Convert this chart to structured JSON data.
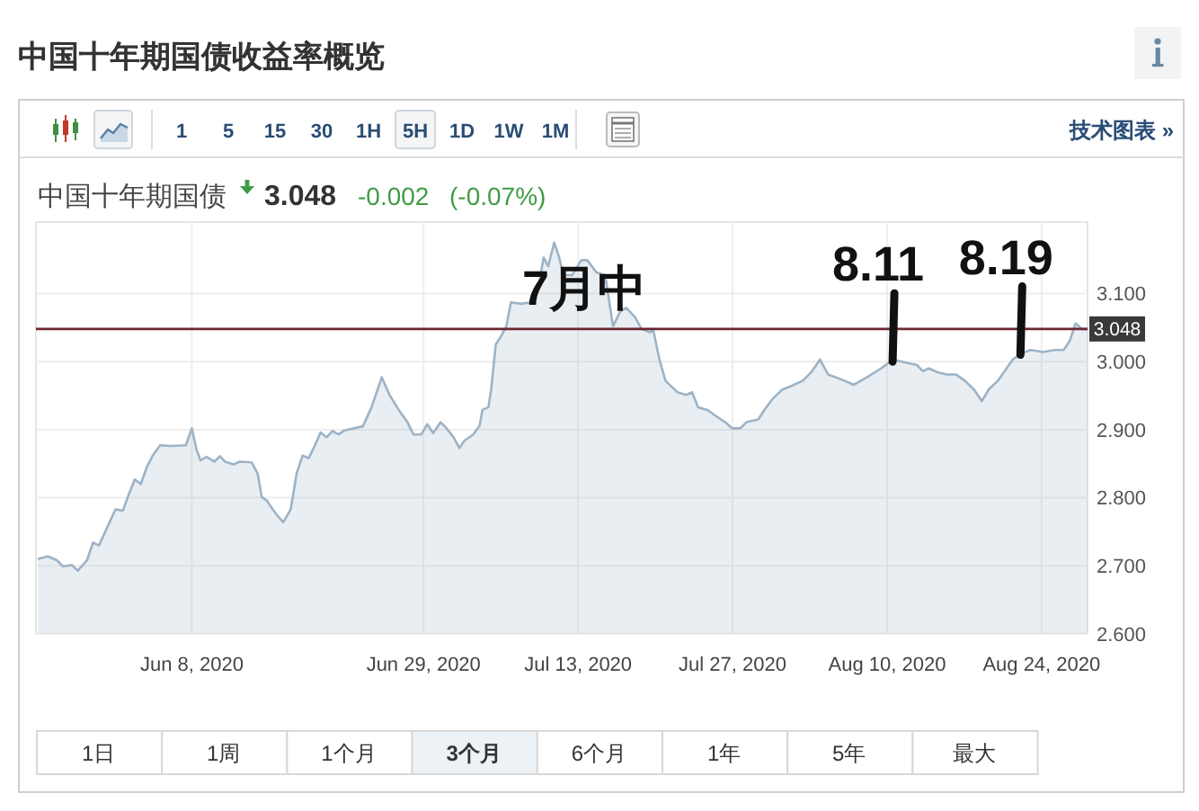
{
  "chart_data": {
    "type": "area",
    "title": "中国十年期国债收益率概览",
    "subtitle": "中国十年期国债",
    "color": "#9db3c6",
    "x": [
      "2020-05-25T01:00",
      "2020-05-25T23:00",
      "2020-05-26T19:00",
      "2020-05-27T08:00",
      "2020-05-28T03:00",
      "2020-05-28T16:00",
      "2020-05-29T12:00",
      "2020-05-30T01:00",
      "2020-05-30T14:00",
      "2020-06-01T02:00",
      "2020-06-01T18:00",
      "2020-06-02T07:00",
      "2020-06-02T20:00",
      "2020-06-03T09:00",
      "2020-06-03T22:00",
      "2020-06-04T11:00",
      "2020-06-05T03:00",
      "2020-06-06T02:00",
      "2020-06-07T11:00",
      "2020-06-08T00:00",
      "2020-06-08T10:00",
      "2020-06-08T19:00",
      "2020-06-09T08:00",
      "2020-06-10T01:00",
      "2020-06-10T13:00",
      "2020-06-11T00:00",
      "2020-06-11T19:00",
      "2020-06-12T08:00",
      "2020-06-13T10:00",
      "2020-06-13T23:00",
      "2020-06-14T08:00",
      "2020-06-14T19:00",
      "2020-06-15T08:00",
      "2020-06-15T18:00",
      "2020-06-16T07:00",
      "2020-06-16T23:00",
      "2020-06-17T12:00",
      "2020-06-18T01:00",
      "2020-06-18T14:00",
      "2020-06-19T03:00",
      "2020-06-19T16:00",
      "2020-06-20T05:00",
      "2020-06-20T18:00",
      "2020-06-21T07:00",
      "2020-06-21T20:00",
      "2020-06-23T12:00",
      "2020-06-24T07:00",
      "2020-06-25T05:00",
      "2020-06-25T22:00",
      "2020-06-26T18:00",
      "2020-06-27T13:00",
      "2020-06-28T02:00",
      "2020-06-28T19:00",
      "2020-06-29T08:00",
      "2020-06-29T21:00",
      "2020-06-30T13:00",
      "2020-07-01T02:00",
      "2020-07-01T17:00",
      "2020-07-02T06:00",
      "2020-07-02T17:00",
      "2020-07-03T12:00",
      "2020-07-04T02:00",
      "2020-07-04T08:00",
      "2020-07-04T21:00",
      "2020-07-05T03:00",
      "2020-07-05T13:00",
      "2020-07-06T02:00",
      "2020-07-06T12:00",
      "2020-07-06T22:00",
      "2020-07-07T21:00",
      "2020-07-08T16:00",
      "2020-07-09T12:00",
      "2020-07-09T21:00",
      "2020-07-10T07:00",
      "2020-07-10T20:00",
      "2020-07-11T07:00",
      "2020-07-11T16:00",
      "2020-07-12T11:00",
      "2020-07-13T07:00",
      "2020-07-13T20:00",
      "2020-07-14T16:00",
      "2020-07-15T11:00",
      "2020-07-16T04:00",
      "2020-07-16T20:00",
      "2020-07-17T09:00",
      "2020-07-18T04:00",
      "2020-07-18T18:00",
      "2020-07-19T13:00",
      "2020-07-19T19:00",
      "2020-07-20T09:00",
      "2020-07-20T22:00",
      "2020-07-21T10:00",
      "2020-07-22T00:00",
      "2020-07-22T19:00",
      "2020-07-23T08:00",
      "2020-07-23T21:00",
      "2020-07-24T17:00",
      "2020-07-25T12:00",
      "2020-07-26T08:00",
      "2020-07-26T23:00",
      "2020-07-27T17:00",
      "2020-07-28T06:00",
      "2020-07-29T08:00",
      "2020-07-29T21:00",
      "2020-07-30T16:00",
      "2020-07-31T12:00",
      "2020-08-01T07:00",
      "2020-08-02T09:00",
      "2020-08-03T05:00",
      "2020-08-03T22:00",
      "2020-08-04T16:00",
      "2020-08-05T16:00",
      "2020-08-07T00:00",
      "2020-08-08T09:00",
      "2020-08-09T11:00",
      "2020-08-10T13:00",
      "2020-08-11T15:00",
      "2020-08-12T17:00",
      "2020-08-13T06:00",
      "2020-08-13T19:00",
      "2020-08-14T15:00",
      "2020-08-15T10:00",
      "2020-08-16T06:00",
      "2020-08-17T01:00",
      "2020-08-17T21:00",
      "2020-08-18T14:00",
      "2020-08-19T05:00",
      "2020-08-20T01:00",
      "2020-08-20T20:00",
      "2020-08-21T09:00",
      "2020-08-22T01:00",
      "2020-08-23T00:00",
      "2020-08-24T03:00",
      "2020-08-25T05:00",
      "2020-08-26T00:00",
      "2020-08-26T13:00",
      "2020-08-27T02:00",
      "2020-08-27T16:00",
      "2020-08-28T04:00"
    ],
    "values": [
      2.71,
      2.714,
      2.708,
      2.699,
      2.701,
      2.693,
      2.708,
      2.734,
      2.73,
      2.783,
      2.781,
      2.805,
      2.827,
      2.82,
      2.845,
      2.862,
      2.877,
      2.876,
      2.877,
      2.902,
      2.871,
      2.855,
      2.86,
      2.853,
      2.861,
      2.853,
      2.849,
      2.853,
      2.852,
      2.836,
      2.801,
      2.796,
      2.783,
      2.774,
      2.764,
      2.783,
      2.836,
      2.862,
      2.858,
      2.876,
      2.896,
      2.889,
      2.898,
      2.893,
      2.899,
      2.905,
      2.933,
      2.977,
      2.951,
      2.929,
      2.911,
      2.893,
      2.893,
      2.908,
      2.895,
      2.911,
      2.902,
      2.889,
      2.873,
      2.884,
      2.893,
      2.906,
      2.929,
      2.933,
      2.959,
      3.025,
      3.039,
      3.052,
      3.087,
      3.085,
      3.087,
      3.118,
      3.153,
      3.14,
      3.175,
      3.153,
      3.127,
      3.127,
      3.149,
      3.149,
      3.131,
      3.127,
      3.052,
      3.074,
      3.079,
      3.065,
      3.048,
      3.043,
      3.048,
      3.003,
      2.972,
      2.964,
      2.955,
      2.951,
      2.955,
      2.933,
      2.929,
      2.92,
      2.911,
      2.902,
      2.902,
      2.911,
      2.915,
      2.929,
      2.946,
      2.959,
      2.964,
      2.972,
      2.986,
      3.003,
      2.981,
      2.975,
      2.966,
      2.979,
      2.99,
      3.003,
      2.999,
      2.995,
      2.986,
      2.99,
      2.984,
      2.981,
      2.981,
      2.972,
      2.959,
      2.942,
      2.959,
      2.972,
      2.99,
      3.003,
      3.011,
      3.017,
      3.014,
      3.017,
      3.017,
      3.03,
      3.056,
      3.048,
      3.048
    ],
    "xlim": [
      "2020-05-24T21:00",
      "2020-08-28T04:00"
    ],
    "xticks": [
      {
        "value": "2020-06-08",
        "label": "Jun 8, 2020"
      },
      {
        "value": "2020-06-29",
        "label": "Jun 29, 2020"
      },
      {
        "value": "2020-07-13",
        "label": "Jul 13, 2020"
      },
      {
        "value": "2020-07-27",
        "label": "Jul 27, 2020"
      },
      {
        "value": "2020-08-10",
        "label": "Aug 10, 2020"
      },
      {
        "value": "2020-08-24",
        "label": "Aug 24, 2020"
      }
    ],
    "ylim": [
      2.6,
      3.205
    ],
    "yticks": [
      {
        "value": 2.6,
        "label": "2.600"
      },
      {
        "value": 2.7,
        "label": "2.700"
      },
      {
        "value": 2.8,
        "label": "2.800"
      },
      {
        "value": 2.9,
        "label": "2.900"
      },
      {
        "value": 3.0,
        "label": "3.000"
      },
      {
        "value": 3.1,
        "label": "3.100"
      }
    ],
    "grid": true,
    "ref_lines": [
      {
        "axis": "y",
        "value": 3.048,
        "label": "3.048",
        "color": "#6b2631"
      }
    ],
    "annotations": [
      "7月中",
      {
        "text": "8.11",
        "x": "2020-08-10T12:00",
        "y": 3.0
      },
      {
        "text": "8.19",
        "x": "2020-08-22T02:00",
        "y": 3.01
      },
      "3.048",
      "-0.002",
      "(-0.07%)",
      "1",
      "5",
      "15",
      "30",
      "1H",
      "5H",
      "1D",
      "1W",
      "1M",
      "技术图表 »",
      "1日",
      "1周",
      "1个月",
      "3个月",
      "6个月",
      "1年",
      "5年",
      "最大"
    ]
  }
}
